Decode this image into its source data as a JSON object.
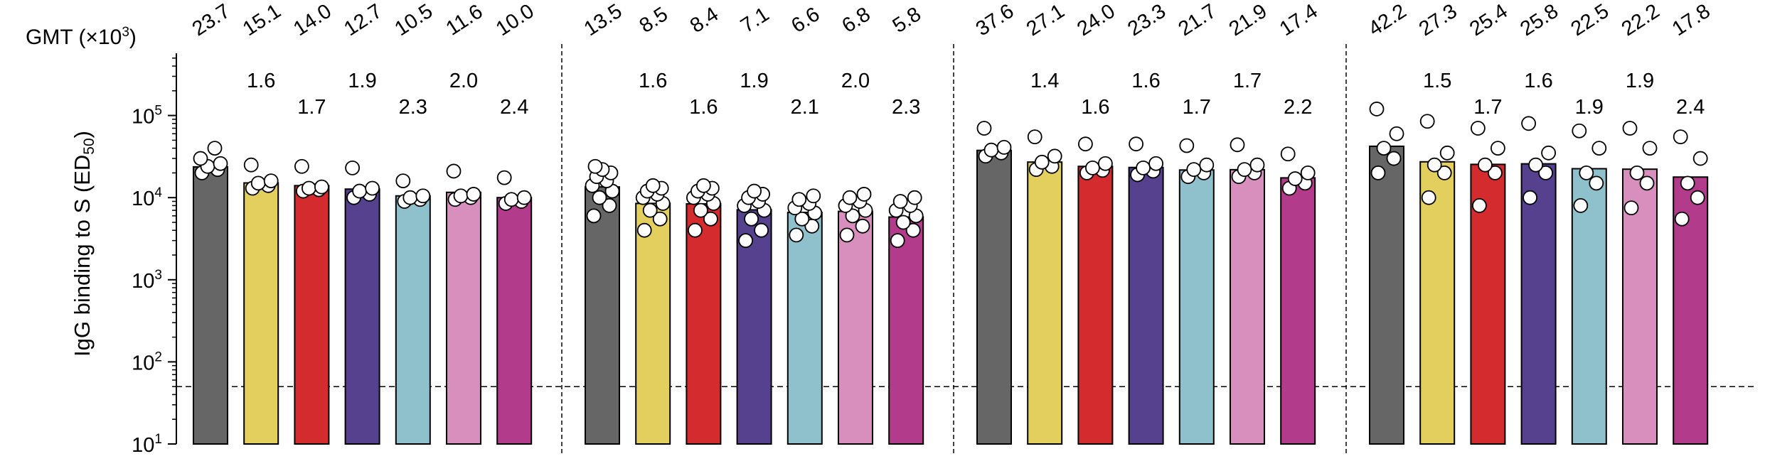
{
  "chart_data": {
    "type": "bar",
    "title": "",
    "xlabel": "",
    "ylabel": "IgG binding to S (ED50)",
    "ylabel_parts": {
      "main": "IgG binding to S (ED",
      "sub": "50",
      "close": ")"
    },
    "gmt_label": {
      "main": "GMT (×10",
      "sup": "3",
      "close": ")"
    },
    "y_scale": "log",
    "ylim": [
      10,
      500000
    ],
    "y_ticks": [
      {
        "value": 10,
        "base": "10",
        "exp": "1"
      },
      {
        "value": 100,
        "base": "10",
        "exp": "2"
      },
      {
        "value": 1000,
        "base": "10",
        "exp": "3"
      },
      {
        "value": 10000,
        "base": "10",
        "exp": "4"
      },
      {
        "value": 100000,
        "base": "10",
        "exp": "5"
      }
    ],
    "detection_limit": 50,
    "bar_colors": [
      "#666666",
      "#e2cf5e",
      "#d42c2e",
      "#55418e",
      "#8fc1cc",
      "#d88fbd",
      "#b23c8b"
    ],
    "groups": [
      {
        "gmt": [
          23.7,
          15.1,
          14.0,
          12.7,
          10.5,
          11.6,
          10.0
        ],
        "fold": [
          null,
          "1.6",
          "1.7",
          "1.9",
          "2.3",
          "2.0",
          "2.4"
        ],
        "points": [
          [
            20000,
            22000,
            24000,
            26000,
            30000,
            40000
          ],
          [
            13000,
            14000,
            15000,
            16000,
            25000
          ],
          [
            12000,
            12500,
            13000,
            13500,
            24000
          ],
          [
            10000,
            11000,
            12000,
            13000,
            23000
          ],
          [
            9000,
            9500,
            10000,
            10500,
            16000
          ],
          [
            9500,
            10000,
            10500,
            11000,
            21000
          ],
          [
            8500,
            9000,
            9500,
            10000,
            17500
          ]
        ]
      },
      {
        "gmt": [
          13.5,
          8.5,
          8.4,
          7.1,
          6.6,
          6.8,
          5.8
        ],
        "fold": [
          null,
          "1.6",
          "1.6",
          "1.9",
          "2.1",
          "2.0",
          "2.3"
        ],
        "points": [
          [
            6000,
            8000,
            10000,
            12000,
            14000,
            16000,
            18000,
            20000,
            22000,
            24000
          ],
          [
            4000,
            5500,
            7000,
            8500,
            10000,
            11000,
            12000,
            13000,
            14000
          ],
          [
            4000,
            5500,
            7000,
            8500,
            10000,
            11000,
            12000,
            13000,
            14000
          ],
          [
            3000,
            4000,
            5500,
            7000,
            8000,
            9000,
            10000,
            11000,
            12000
          ],
          [
            3500,
            4500,
            5500,
            6500,
            7500,
            8500,
            9500,
            10500
          ],
          [
            3500,
            4500,
            6000,
            7000,
            8000,
            9000,
            10000,
            11000
          ],
          [
            3000,
            4000,
            5000,
            6000,
            7000,
            8000,
            9000,
            10000
          ]
        ]
      },
      {
        "gmt": [
          37.6,
          27.1,
          24.0,
          23.3,
          21.7,
          21.9,
          17.4
        ],
        "fold": [
          null,
          "1.4",
          "1.6",
          "1.6",
          "1.7",
          "1.7",
          "2.2"
        ],
        "points": [
          [
            32000,
            35000,
            38000,
            41000,
            70000
          ],
          [
            22000,
            24000,
            27000,
            32000,
            55000
          ],
          [
            20000,
            21500,
            23000,
            26000,
            45000
          ],
          [
            19000,
            21000,
            23000,
            26000,
            45000
          ],
          [
            18000,
            20000,
            22000,
            25000,
            43000
          ],
          [
            18000,
            20000,
            22000,
            25000,
            44000
          ],
          [
            13000,
            15000,
            17000,
            20000,
            34000
          ]
        ]
      },
      {
        "gmt": [
          42.2,
          27.3,
          25.4,
          25.8,
          22.5,
          22.2,
          17.8
        ],
        "fold": [
          null,
          "1.5",
          "1.7",
          "1.6",
          "1.9",
          "1.9",
          "2.4"
        ],
        "points": [
          [
            20000,
            30000,
            40000,
            60000,
            120000
          ],
          [
            10000,
            20000,
            25000,
            35000,
            85000
          ],
          [
            8000,
            20000,
            25000,
            40000,
            70000
          ],
          [
            10000,
            20000,
            25000,
            35000,
            80000
          ],
          [
            8000,
            15000,
            20000,
            40000,
            65000
          ],
          [
            7500,
            15000,
            20000,
            40000,
            70000
          ],
          [
            5500,
            10000,
            15000,
            30000,
            55000
          ]
        ]
      }
    ]
  }
}
